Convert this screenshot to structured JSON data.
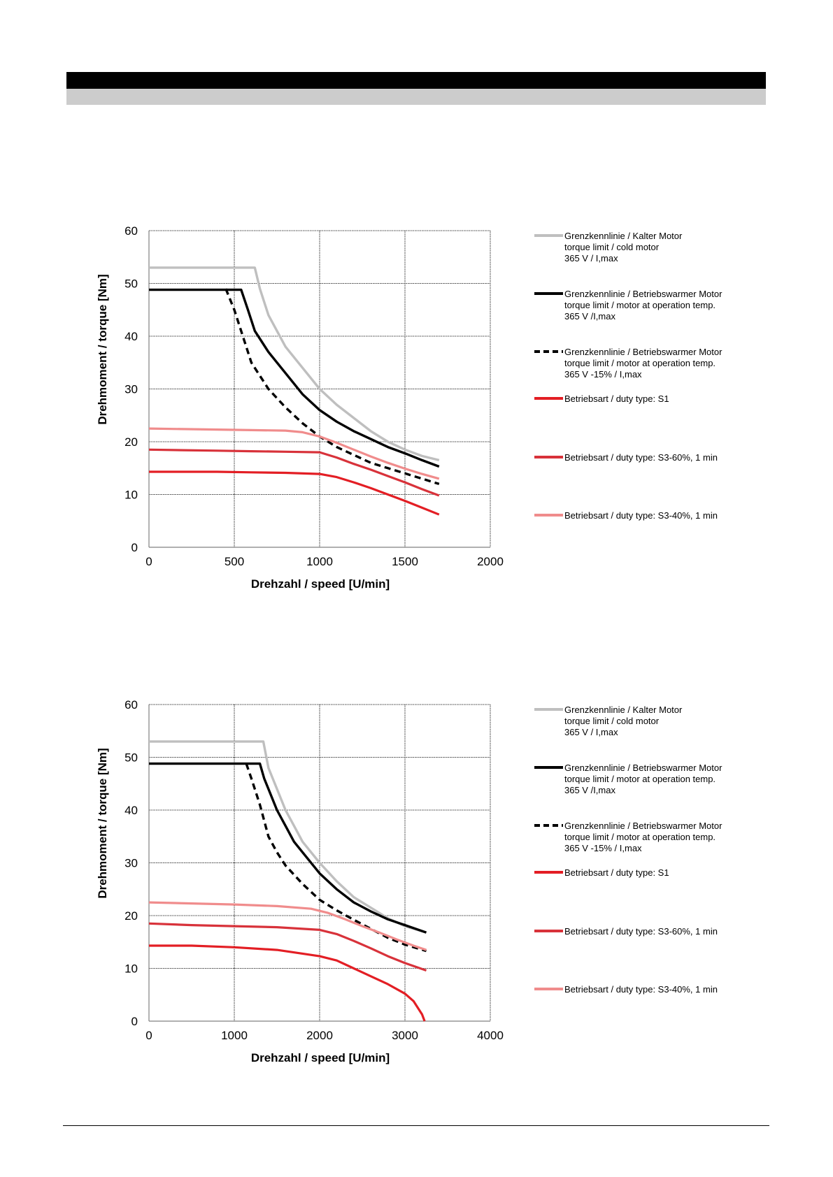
{
  "chart_data": [
    {
      "type": "line",
      "xlabel": "Drehzahl / speed [U/min]",
      "ylabel": "Drehmoment / torque [Nm]",
      "xlim": [
        0,
        2000
      ],
      "ylim": [
        0,
        60
      ],
      "xticks": [
        "0",
        "500",
        "1000",
        "1500",
        "2000"
      ],
      "yticks": [
        "0",
        "10",
        "20",
        "30",
        "40",
        "50",
        "60"
      ],
      "grid": true,
      "legend_position": "right",
      "series": [
        {
          "name": "Grenzkennlinie / Kalter Motor",
          "name_line2": "torque limit / cold  motor",
          "name_line3": "365 V / I,max",
          "color": "#bfbfbf",
          "style": "solid",
          "x": [
            0,
            620,
            650,
            700,
            800,
            900,
            1000,
            1100,
            1200,
            1300,
            1400,
            1500,
            1600,
            1700
          ],
          "y": [
            53,
            53,
            49,
            44,
            38,
            34,
            30,
            27,
            24.5,
            22,
            20,
            18.5,
            17.3,
            16.5
          ]
        },
        {
          "name": "Grenzkennlinie / Betriebswarmer Motor",
          "name_line2": "torque limit / motor at operation temp.",
          "name_line3": "365 V /I,max",
          "color": "#000000",
          "style": "solid",
          "x": [
            0,
            540,
            580,
            620,
            700,
            800,
            900,
            1000,
            1100,
            1200,
            1300,
            1400,
            1500,
            1600,
            1700
          ],
          "y": [
            48.8,
            48.8,
            45,
            41,
            37,
            33,
            29,
            26,
            23.8,
            22,
            20.5,
            19,
            17.8,
            16.5,
            15.3
          ]
        },
        {
          "name": "Grenzkennlinie / Betriebswarmer Motor",
          "name_line2": "torque limit / motor at operation temp.",
          "name_line3": "365 V  -15% / I,max",
          "color": "#000000",
          "style": "dashed",
          "x": [
            450,
            500,
            550,
            600,
            700,
            800,
            900,
            1000,
            1100,
            1200,
            1300,
            1400,
            1500,
            1600,
            1700
          ],
          "y": [
            49,
            45,
            40,
            35,
            30,
            26.5,
            23.5,
            21,
            19,
            17.5,
            16,
            15,
            14,
            13,
            12
          ]
        },
        {
          "name": "Betriebsart / duty type: S1",
          "color": "#e31e24",
          "style": "solid",
          "x": [
            0,
            200,
            400,
            600,
            800,
            1000,
            1100,
            1200,
            1300,
            1400,
            1500,
            1600,
            1700
          ],
          "y": [
            14.3,
            14.3,
            14.3,
            14.2,
            14.1,
            13.9,
            13.3,
            12.3,
            11.2,
            10,
            8.8,
            7.5,
            6.2
          ]
        },
        {
          "name": "Betriebsart / duty type: S3-60%, 1 min",
          "color": "#d8323a",
          "style": "solid",
          "x": [
            0,
            200,
            400,
            600,
            800,
            1000,
            1100,
            1200,
            1300,
            1400,
            1500,
            1600,
            1700
          ],
          "y": [
            18.5,
            18.4,
            18.3,
            18.2,
            18.1,
            18,
            17,
            15.8,
            14.7,
            13.5,
            12.3,
            11,
            9.8
          ]
        },
        {
          "name": "Betriebsart / duty type: S3-40%, 1 min",
          "color": "#f08c8c",
          "style": "solid",
          "x": [
            0,
            200,
            400,
            600,
            800,
            900,
            1000,
            1100,
            1200,
            1300,
            1400,
            1500,
            1600,
            1700
          ],
          "y": [
            22.5,
            22.4,
            22.3,
            22.2,
            22.1,
            21.8,
            21,
            19.8,
            18.5,
            17.2,
            16,
            14.9,
            13.9,
            13
          ]
        }
      ]
    },
    {
      "type": "line",
      "xlabel": "Drehzahl / speed [U/min]",
      "ylabel": "Drehmoment / torque [Nm]",
      "xlim": [
        0,
        4000
      ],
      "ylim": [
        0,
        60
      ],
      "xticks": [
        "0",
        "1000",
        "2000",
        "3000",
        "4000"
      ],
      "yticks": [
        "0",
        "10",
        "20",
        "30",
        "40",
        "50",
        "60"
      ],
      "grid": true,
      "legend_position": "right",
      "series": [
        {
          "name": "Grenzkennlinie / Kalter Motor",
          "name_line2": "torque limit / cold  motor",
          "name_line3": "365 V / I,max",
          "color": "#bfbfbf",
          "style": "solid",
          "x": [
            0,
            1340,
            1400,
            1500,
            1600,
            1700,
            1800,
            2000,
            2200,
            2400,
            2600,
            2800,
            3000,
            3250
          ],
          "y": [
            53,
            53,
            48,
            44,
            40,
            37,
            34,
            30,
            26.5,
            23.5,
            21.5,
            19.5,
            18,
            16.8
          ]
        },
        {
          "name": "Grenzkennlinie / Betriebswarmer Motor",
          "name_line2": "torque limit / motor at operation temp.",
          "name_line3": "365 V /I,max",
          "color": "#000000",
          "style": "solid",
          "x": [
            0,
            1300,
            1350,
            1400,
            1500,
            1600,
            1700,
            1800,
            2000,
            2200,
            2400,
            2600,
            2800,
            3000,
            3250
          ],
          "y": [
            48.8,
            48.8,
            46,
            44,
            40,
            37,
            34,
            32,
            28,
            25,
            22.5,
            20.8,
            19.3,
            18.2,
            16.8
          ]
        },
        {
          "name": "Grenzkennlinie / Betriebswarmer Motor",
          "name_line2": "torque limit / motor at operation temp.",
          "name_line3": "365 V  -15% / I,max",
          "color": "#000000",
          "style": "dashed",
          "x": [
            1140,
            1200,
            1300,
            1350,
            1400,
            1500,
            1600,
            1800,
            2000,
            2200,
            2400,
            2600,
            2800,
            3000,
            3250
          ],
          "y": [
            48.8,
            46,
            41,
            38,
            35,
            32,
            29.5,
            26,
            23,
            21,
            19.2,
            17.5,
            15.8,
            14.5,
            13.3
          ]
        },
        {
          "name": "Betriebsart / duty type: S1",
          "color": "#e31e24",
          "style": "solid",
          "x": [
            0,
            500,
            1000,
            1500,
            1800,
            2000,
            2200,
            2400,
            2600,
            2800,
            3000,
            3100,
            3200,
            3230
          ],
          "y": [
            14.3,
            14.3,
            14,
            13.5,
            12.8,
            12.3,
            11.5,
            10,
            8.5,
            7,
            5.2,
            3.8,
            1.3,
            0
          ]
        },
        {
          "name": "Betriebsart / duty type: S3-60%, 1 min",
          "color": "#d8323a",
          "style": "solid",
          "x": [
            0,
            500,
            1000,
            1500,
            2000,
            2200,
            2400,
            2600,
            2800,
            3000,
            3250
          ],
          "y": [
            18.5,
            18.2,
            18,
            17.8,
            17.3,
            16.5,
            15.2,
            13.8,
            12.3,
            11,
            9.6
          ]
        },
        {
          "name": "Betriebsart / duty type: S3-40%, 1 min",
          "color": "#f08c8c",
          "style": "solid",
          "x": [
            0,
            500,
            1000,
            1500,
            1900,
            2100,
            2300,
            2500,
            2700,
            2900,
            3100,
            3250
          ],
          "y": [
            22.5,
            22.3,
            22.1,
            21.8,
            21.3,
            20.5,
            19.3,
            18,
            16.8,
            15.5,
            14.3,
            13.5
          ]
        }
      ]
    }
  ]
}
